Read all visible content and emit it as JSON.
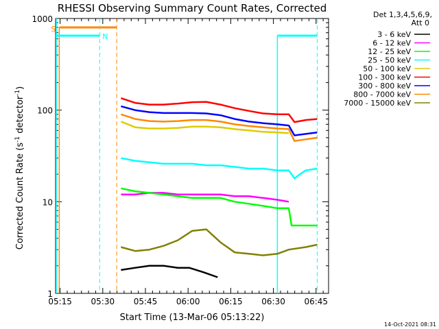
{
  "chart_data": {
    "type": "line",
    "title": "RHESSI Observing Summary Count Rates, Corrected",
    "xlabel": "Start Time (13-Mar-06 05:13:22)",
    "ylabel_main": "Corrected Count Rate (s",
    "ylabel_sup1": "-1",
    "ylabel_mid": " detector",
    "ylabel_sup2": "-1",
    "ylabel_end": ")",
    "yscale": "log",
    "ylim": [
      1,
      1000
    ],
    "xlim_minutes": [
      0,
      96
    ],
    "x_ticks": [
      {
        "m": 1.6,
        "label": "05:15"
      },
      {
        "m": 16.6,
        "label": "05:30"
      },
      {
        "m": 31.6,
        "label": "05:45"
      },
      {
        "m": 46.6,
        "label": "06:00"
      },
      {
        "m": 61.6,
        "label": "06:15"
      },
      {
        "m": 76.6,
        "label": "06:30"
      },
      {
        "m": 91.6,
        "label": "06:45"
      }
    ],
    "y_ticks": [
      {
        "v": 1,
        "label": "1"
      },
      {
        "v": 10,
        "label": "10"
      },
      {
        "v": 100,
        "label": "100"
      },
      {
        "v": 1000,
        "label": "1000"
      }
    ],
    "legend_header": [
      "Det 1,3,4,5,6,9,",
      "Att 0"
    ],
    "series": [
      {
        "name": "3 - 6 keV",
        "color": "#000000",
        "points": [
          [
            23,
            1.8
          ],
          [
            28,
            1.9
          ],
          [
            33,
            2.0
          ],
          [
            38,
            2.0
          ],
          [
            43,
            1.9
          ],
          [
            47,
            1.9
          ],
          [
            52,
            1.7
          ],
          [
            57,
            1.5
          ]
        ]
      },
      {
        "name": "6 - 12 keV",
        "color": "#ff00ff",
        "points": [
          [
            23,
            12
          ],
          [
            28,
            12
          ],
          [
            33,
            12.5
          ],
          [
            38,
            12.5
          ],
          [
            43,
            12
          ],
          [
            48,
            12
          ],
          [
            53,
            12
          ],
          [
            58,
            12
          ],
          [
            63,
            11.5
          ],
          [
            68,
            11.5
          ],
          [
            73,
            11
          ],
          [
            78,
            10.5
          ],
          [
            82,
            10
          ]
        ]
      },
      {
        "name": "12 - 25 keV",
        "color": "#00ff00",
        "points": [
          [
            23,
            14
          ],
          [
            28,
            13
          ],
          [
            33,
            12.5
          ],
          [
            38,
            12
          ],
          [
            43,
            11.5
          ],
          [
            48,
            11
          ],
          [
            53,
            11
          ],
          [
            58,
            11
          ],
          [
            63,
            10
          ],
          [
            68,
            9.5
          ],
          [
            73,
            9
          ],
          [
            78,
            8.5
          ],
          [
            82,
            8.5
          ],
          [
            83,
            5.5
          ],
          [
            88,
            5.5
          ],
          [
            92,
            5.5
          ]
        ]
      },
      {
        "name": "25 - 50 keV",
        "color": "#00ffff",
        "points": [
          [
            23,
            30
          ],
          [
            28,
            28
          ],
          [
            33,
            27
          ],
          [
            38,
            26
          ],
          [
            43,
            26
          ],
          [
            48,
            26
          ],
          [
            53,
            25
          ],
          [
            58,
            25
          ],
          [
            63,
            24
          ],
          [
            68,
            23
          ],
          [
            73,
            23
          ],
          [
            78,
            22
          ],
          [
            82,
            22
          ],
          [
            84,
            18
          ],
          [
            86,
            20
          ],
          [
            88,
            22
          ],
          [
            92,
            23
          ]
        ]
      },
      {
        "name": "50 - 100 keV",
        "color": "#ddcc00",
        "points": [
          [
            23,
            75
          ],
          [
            28,
            65
          ],
          [
            33,
            63
          ],
          [
            38,
            63
          ],
          [
            43,
            64
          ],
          [
            48,
            66
          ],
          [
            53,
            66
          ],
          [
            58,
            65
          ],
          [
            63,
            62
          ],
          [
            68,
            60
          ],
          [
            73,
            58
          ],
          [
            78,
            57
          ],
          [
            82,
            56
          ]
        ]
      },
      {
        "name": "100 - 300 keV",
        "color": "#ff0000",
        "points": [
          [
            23,
            135
          ],
          [
            28,
            120
          ],
          [
            33,
            115
          ],
          [
            38,
            115
          ],
          [
            43,
            118
          ],
          [
            48,
            122
          ],
          [
            53,
            123
          ],
          [
            58,
            115
          ],
          [
            63,
            105
          ],
          [
            68,
            98
          ],
          [
            73,
            92
          ],
          [
            78,
            90
          ],
          [
            82,
            90
          ],
          [
            84,
            74
          ],
          [
            88,
            78
          ],
          [
            92,
            80
          ]
        ]
      },
      {
        "name": "300 - 800 keV",
        "color": "#0000ff",
        "points": [
          [
            23,
            110
          ],
          [
            28,
            100
          ],
          [
            33,
            95
          ],
          [
            38,
            93
          ],
          [
            43,
            93
          ],
          [
            48,
            93
          ],
          [
            53,
            92
          ],
          [
            58,
            88
          ],
          [
            63,
            80
          ],
          [
            68,
            75
          ],
          [
            73,
            72
          ],
          [
            78,
            70
          ],
          [
            82,
            68
          ],
          [
            84,
            53
          ],
          [
            88,
            55
          ],
          [
            92,
            57
          ]
        ]
      },
      {
        "name": "800 - 7000 keV",
        "color": "#ff8800",
        "points": [
          [
            23,
            90
          ],
          [
            28,
            80
          ],
          [
            33,
            76
          ],
          [
            38,
            75
          ],
          [
            43,
            76
          ],
          [
            48,
            78
          ],
          [
            53,
            78
          ],
          [
            58,
            75
          ],
          [
            63,
            70
          ],
          [
            68,
            67
          ],
          [
            73,
            65
          ],
          [
            78,
            63
          ],
          [
            82,
            62
          ],
          [
            84,
            46
          ],
          [
            88,
            48
          ],
          [
            92,
            50
          ]
        ]
      },
      {
        "name": "7000 - 15000 keV",
        "color": "#808000",
        "points": [
          [
            23,
            3.2
          ],
          [
            28,
            2.9
          ],
          [
            33,
            3.0
          ],
          [
            38,
            3.3
          ],
          [
            43,
            3.8
          ],
          [
            48,
            4.8
          ],
          [
            53,
            5.0
          ],
          [
            58,
            3.6
          ],
          [
            63,
            2.8
          ],
          [
            68,
            2.7
          ],
          [
            73,
            2.6
          ],
          [
            78,
            2.7
          ],
          [
            82,
            3.0
          ],
          [
            88,
            3.2
          ],
          [
            92,
            3.4
          ]
        ]
      }
    ],
    "annotations": {
      "s_label": "S",
      "n_label": "N",
      "saa_level": 800,
      "night_level": 650,
      "saa_intervals": [
        [
          0,
          1.3
        ]
      ],
      "night_intervals": [
        [
          -2,
          15.5
        ],
        [
          78,
          92
        ]
      ],
      "s_start": 1.3,
      "s_end": 21.5,
      "n_end": 15.5,
      "night_start2": 78,
      "night_end2": 92
    },
    "footer_date": "14-Oct-2021 08:31"
  }
}
